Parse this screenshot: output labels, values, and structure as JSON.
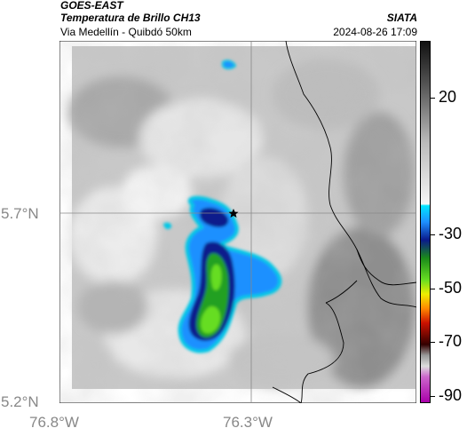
{
  "header": {
    "satellite": "GOES-EAST",
    "product": "Temperatura de Brillo CH13",
    "route": "Via Medellín - Quibdó 50km",
    "org": "SIATA",
    "datetime": "2024-08-26 17:09"
  },
  "map": {
    "lat_labels": [
      "5.7°N",
      "5.2°N"
    ],
    "lon_labels": [
      "76.8°W",
      "76.3°W"
    ],
    "marker": "star-icon",
    "colors": {
      "cloud_blue": "#1e90ff",
      "cloud_dark": "#0a1a8c",
      "cloud_cyan": "#00c8e6",
      "cloud_green": "#22a022",
      "cloud_lightgreen": "#66dd22",
      "ground_gray": "#9a9a9a",
      "ground_light": "#e8e8e8"
    }
  },
  "colorbar": {
    "labels": [
      "20",
      "-30",
      "-50",
      "-70",
      "-90"
    ]
  }
}
